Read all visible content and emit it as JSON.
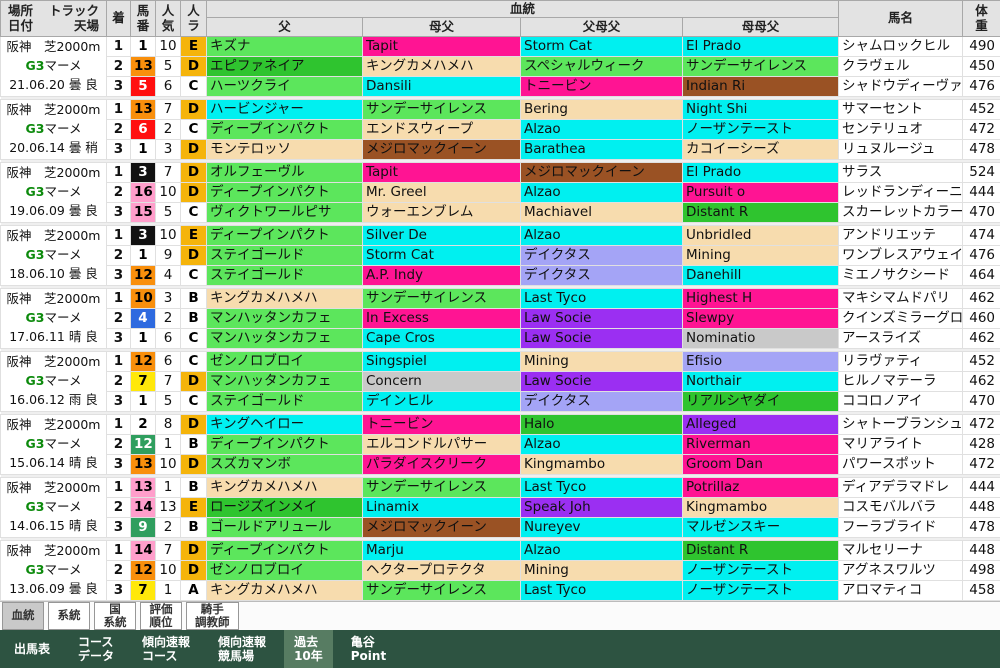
{
  "header": {
    "place_l1a": "場所",
    "place_l1b": "トラック",
    "place_l2a": "日付",
    "place_l2b": "天場",
    "fin": "着",
    "num": "馬番",
    "pop": "人気",
    "rank": "人ラ",
    "pedigree": "血統",
    "sire": "父",
    "damsire": "母父",
    "sire_dam_sire": "父母父",
    "dam_dam_sire": "母母父",
    "name": "馬名",
    "weight": "体重"
  },
  "colors": {
    "nav_bg": "#2d5341",
    "nav_active": "#577c62",
    "tab_active_bg": "#c9c9c9",
    "grade_green": "#0c8a0c",
    "header_bg": "#e3e3e3"
  },
  "palette": {
    "green": "#5ce65c",
    "dgreen": "#2fc42f",
    "magenta": "#ff1493",
    "cyan": "#00f0f0",
    "wheat": "#f7dcae",
    "brown": "#9a5224",
    "purple": "#9b2ff2",
    "periwinkle": "#a4a4f6",
    "silver": "#c9c9c9",
    "white": "#ffffff"
  },
  "num_colors": {
    "white": {
      "bg": "#ffffff",
      "fg": "#000000"
    },
    "black": {
      "bg": "#111111",
      "fg": "#ffffff"
    },
    "red": {
      "bg": "#ff0f0f",
      "fg": "#ffffff"
    },
    "blue": {
      "bg": "#2e6adf",
      "fg": "#ffffff"
    },
    "yellow": {
      "bg": "#ffe80a",
      "fg": "#000000"
    },
    "green": {
      "bg": "#2f9e5e",
      "fg": "#ffffff"
    },
    "orange": {
      "bg": "#f98f0c",
      "fg": "#000000"
    },
    "pink": {
      "bg": "#ff9ecb",
      "fg": "#000000"
    }
  },
  "rank_colors": {
    "gold": {
      "bg": "#f5b40b",
      "fg": "#000000"
    },
    "plain": {
      "bg": "#ffffff",
      "fg": "#000000"
    }
  },
  "races": [
    {
      "place": "阪神　芝2000m",
      "grade": "G3",
      "race_name": "マーメ",
      "date_line": "21.06.20 曇 良",
      "rows": [
        {
          "fin": "1",
          "num": "1",
          "num_c": "white",
          "pop": "10",
          "rank": "E",
          "rank_c": "gold",
          "sire": {
            "t": "キズナ",
            "c": "green"
          },
          "damsire": {
            "t": "Tapit",
            "c": "magenta"
          },
          "ss": {
            "t": "Storm Cat",
            "c": "cyan"
          },
          "ds": {
            "t": "El Prado",
            "c": "cyan"
          },
          "name": "シャムロックヒル",
          "weight": "490"
        },
        {
          "fin": "2",
          "num": "13",
          "num_c": "orange",
          "pop": "5",
          "rank": "D",
          "rank_c": "gold",
          "sire": {
            "t": "エピファネイア",
            "c": "dgreen"
          },
          "damsire": {
            "t": "キングカメハメハ",
            "c": "wheat"
          },
          "ss": {
            "t": "スペシャルウィーク",
            "c": "green"
          },
          "ds": {
            "t": "サンデーサイレンス",
            "c": "green"
          },
          "name": "クラヴェル",
          "weight": "450"
        },
        {
          "fin": "3",
          "num": "5",
          "num_c": "red",
          "pop": "6",
          "rank": "C",
          "rank_c": "plain",
          "sire": {
            "t": "ハーツクライ",
            "c": "green"
          },
          "damsire": {
            "t": "Dansili",
            "c": "cyan"
          },
          "ss": {
            "t": "トニービン",
            "c": "magenta"
          },
          "ds": {
            "t": "Indian Ri",
            "c": "brown"
          },
          "name": "シャドウディーヴァ",
          "weight": "476"
        }
      ]
    },
    {
      "place": "阪神　芝2000m",
      "grade": "G3",
      "race_name": "マーメ",
      "date_line": "20.06.14 曇 稍",
      "rows": [
        {
          "fin": "1",
          "num": "13",
          "num_c": "orange",
          "pop": "7",
          "rank": "D",
          "rank_c": "gold",
          "sire": {
            "t": "ハービンジャー",
            "c": "cyan"
          },
          "damsire": {
            "t": "サンデーサイレンス",
            "c": "green"
          },
          "ss": {
            "t": "Bering",
            "c": "wheat"
          },
          "ds": {
            "t": "Night Shi",
            "c": "cyan"
          },
          "name": "サマーセント",
          "weight": "452"
        },
        {
          "fin": "2",
          "num": "6",
          "num_c": "red",
          "pop": "2",
          "rank": "C",
          "rank_c": "plain",
          "sire": {
            "t": "ディープインパクト",
            "c": "green"
          },
          "damsire": {
            "t": "エンドスウィープ",
            "c": "wheat"
          },
          "ss": {
            "t": "Alzao",
            "c": "cyan"
          },
          "ds": {
            "t": "ノーザンテースト",
            "c": "cyan"
          },
          "name": "センテリュオ",
          "weight": "472"
        },
        {
          "fin": "3",
          "num": "1",
          "num_c": "white",
          "pop": "3",
          "rank": "D",
          "rank_c": "gold",
          "sire": {
            "t": "モンテロッソ",
            "c": "wheat"
          },
          "damsire": {
            "t": "メジロマックイーン",
            "c": "brown"
          },
          "ss": {
            "t": "Barathea",
            "c": "cyan"
          },
          "ds": {
            "t": "カコイーシーズ",
            "c": "wheat"
          },
          "name": "リュヌルージュ",
          "weight": "478"
        }
      ]
    },
    {
      "place": "阪神　芝2000m",
      "grade": "G3",
      "race_name": "マーメ",
      "date_line": "19.06.09 曇 良",
      "rows": [
        {
          "fin": "1",
          "num": "3",
          "num_c": "black",
          "pop": "7",
          "rank": "D",
          "rank_c": "gold",
          "sire": {
            "t": "オルフェーヴル",
            "c": "green"
          },
          "damsire": {
            "t": "Tapit",
            "c": "magenta"
          },
          "ss": {
            "t": "メジロマックイーン",
            "c": "brown"
          },
          "ds": {
            "t": "El Prado",
            "c": "cyan"
          },
          "name": "サラス",
          "weight": "524"
        },
        {
          "fin": "2",
          "num": "16",
          "num_c": "pink",
          "pop": "10",
          "rank": "D",
          "rank_c": "gold",
          "sire": {
            "t": "ディープインパクト",
            "c": "green"
          },
          "damsire": {
            "t": "Mr. Greel",
            "c": "wheat"
          },
          "ss": {
            "t": "Alzao",
            "c": "cyan"
          },
          "ds": {
            "t": "Pursuit o",
            "c": "magenta"
          },
          "name": "レッドランディーニ",
          "weight": "444"
        },
        {
          "fin": "3",
          "num": "15",
          "num_c": "pink",
          "pop": "5",
          "rank": "C",
          "rank_c": "plain",
          "sire": {
            "t": "ヴィクトワールピサ",
            "c": "green"
          },
          "damsire": {
            "t": "ウォーエンブレム",
            "c": "wheat"
          },
          "ss": {
            "t": "Machiavel",
            "c": "wheat"
          },
          "ds": {
            "t": "Distant R",
            "c": "dgreen"
          },
          "name": "スカーレットカラー",
          "weight": "470"
        }
      ]
    },
    {
      "place": "阪神　芝2000m",
      "grade": "G3",
      "race_name": "マーメ",
      "date_line": "18.06.10 曇 良",
      "rows": [
        {
          "fin": "1",
          "num": "3",
          "num_c": "black",
          "pop": "10",
          "rank": "E",
          "rank_c": "gold",
          "sire": {
            "t": "ディープインパクト",
            "c": "green"
          },
          "damsire": {
            "t": "Silver De",
            "c": "cyan"
          },
          "ss": {
            "t": "Alzao",
            "c": "cyan"
          },
          "ds": {
            "t": "Unbridled",
            "c": "wheat"
          },
          "name": "アンドリエッテ",
          "weight": "474"
        },
        {
          "fin": "2",
          "num": "1",
          "num_c": "white",
          "pop": "9",
          "rank": "D",
          "rank_c": "gold",
          "sire": {
            "t": "ステイゴールド",
            "c": "green"
          },
          "damsire": {
            "t": "Storm Cat",
            "c": "cyan"
          },
          "ss": {
            "t": "デイクタス",
            "c": "periwinkle"
          },
          "ds": {
            "t": "Mining",
            "c": "wheat"
          },
          "name": "ワンブレスアウェイ",
          "weight": "476"
        },
        {
          "fin": "3",
          "num": "12",
          "num_c": "orange",
          "pop": "4",
          "rank": "C",
          "rank_c": "plain",
          "sire": {
            "t": "ステイゴールド",
            "c": "green"
          },
          "damsire": {
            "t": "A.P. Indy",
            "c": "magenta"
          },
          "ss": {
            "t": "デイクタス",
            "c": "periwinkle"
          },
          "ds": {
            "t": "Danehill",
            "c": "cyan"
          },
          "name": "ミエノサクシード",
          "weight": "464"
        }
      ]
    },
    {
      "place": "阪神　芝2000m",
      "grade": "G3",
      "race_name": "マーメ",
      "date_line": "17.06.11 晴 良",
      "rows": [
        {
          "fin": "1",
          "num": "10",
          "num_c": "orange",
          "pop": "3",
          "rank": "B",
          "rank_c": "plain",
          "sire": {
            "t": "キングカメハメハ",
            "c": "wheat"
          },
          "damsire": {
            "t": "サンデーサイレンス",
            "c": "green"
          },
          "ss": {
            "t": "Last Tyco",
            "c": "cyan"
          },
          "ds": {
            "t": "Highest H",
            "c": "magenta"
          },
          "name": "マキシマムドパリ",
          "weight": "462"
        },
        {
          "fin": "2",
          "num": "4",
          "num_c": "blue",
          "pop": "2",
          "rank": "B",
          "rank_c": "plain",
          "sire": {
            "t": "マンハッタンカフェ",
            "c": "green"
          },
          "damsire": {
            "t": "In Excess",
            "c": "magenta"
          },
          "ss": {
            "t": "Law Socie",
            "c": "purple"
          },
          "ds": {
            "t": "Slewpy",
            "c": "magenta"
          },
          "name": "クインズミラーグロ",
          "weight": "460"
        },
        {
          "fin": "3",
          "num": "1",
          "num_c": "white",
          "pop": "6",
          "rank": "C",
          "rank_c": "plain",
          "sire": {
            "t": "マンハッタンカフェ",
            "c": "green"
          },
          "damsire": {
            "t": "Cape Cros",
            "c": "cyan"
          },
          "ss": {
            "t": "Law Socie",
            "c": "purple"
          },
          "ds": {
            "t": "Nominatio",
            "c": "silver"
          },
          "name": "アースライズ",
          "weight": "462"
        }
      ]
    },
    {
      "place": "阪神　芝2000m",
      "grade": "G3",
      "race_name": "マーメ",
      "date_line": "16.06.12 雨 良",
      "rows": [
        {
          "fin": "1",
          "num": "12",
          "num_c": "orange",
          "pop": "6",
          "rank": "C",
          "rank_c": "plain",
          "sire": {
            "t": "ゼンノロブロイ",
            "c": "green"
          },
          "damsire": {
            "t": "Singspiel",
            "c": "cyan"
          },
          "ss": {
            "t": "Mining",
            "c": "wheat"
          },
          "ds": {
            "t": "Efisio",
            "c": "periwinkle"
          },
          "name": "リラヴァティ",
          "weight": "452"
        },
        {
          "fin": "2",
          "num": "7",
          "num_c": "yellow",
          "pop": "7",
          "rank": "D",
          "rank_c": "gold",
          "sire": {
            "t": "マンハッタンカフェ",
            "c": "green"
          },
          "damsire": {
            "t": "Concern",
            "c": "silver"
          },
          "ss": {
            "t": "Law Socie",
            "c": "purple"
          },
          "ds": {
            "t": "Northair",
            "c": "cyan"
          },
          "name": "ヒルノマテーラ",
          "weight": "462"
        },
        {
          "fin": "3",
          "num": "1",
          "num_c": "white",
          "pop": "5",
          "rank": "C",
          "rank_c": "plain",
          "sire": {
            "t": "ステイゴールド",
            "c": "green"
          },
          "damsire": {
            "t": "デインヒル",
            "c": "cyan"
          },
          "ss": {
            "t": "デイクタス",
            "c": "periwinkle"
          },
          "ds": {
            "t": "リアルシヤダイ",
            "c": "dgreen"
          },
          "name": "ココロノアイ",
          "weight": "470"
        }
      ]
    },
    {
      "place": "阪神　芝2000m",
      "grade": "G3",
      "race_name": "マーメ",
      "date_line": "15.06.14 晴 良",
      "rows": [
        {
          "fin": "1",
          "num": "2",
          "num_c": "white",
          "pop": "8",
          "rank": "D",
          "rank_c": "gold",
          "sire": {
            "t": "キングヘイロー",
            "c": "cyan"
          },
          "damsire": {
            "t": "トニービン",
            "c": "magenta"
          },
          "ss": {
            "t": "Halo",
            "c": "dgreen"
          },
          "ds": {
            "t": "Alleged",
            "c": "purple"
          },
          "name": "シャトーブランシュ",
          "weight": "472"
        },
        {
          "fin": "2",
          "num": "12",
          "num_c": "green",
          "pop": "1",
          "rank": "B",
          "rank_c": "plain",
          "sire": {
            "t": "ディープインパクト",
            "c": "green"
          },
          "damsire": {
            "t": "エルコンドルパサー",
            "c": "wheat"
          },
          "ss": {
            "t": "Alzao",
            "c": "cyan"
          },
          "ds": {
            "t": "Riverman",
            "c": "magenta"
          },
          "name": "マリアライト",
          "weight": "428"
        },
        {
          "fin": "3",
          "num": "13",
          "num_c": "orange",
          "pop": "10",
          "rank": "D",
          "rank_c": "gold",
          "sire": {
            "t": "スズカマンボ",
            "c": "green"
          },
          "damsire": {
            "t": "パラダイスクリーク",
            "c": "magenta"
          },
          "ss": {
            "t": "Kingmambo",
            "c": "wheat"
          },
          "ds": {
            "t": "Groom Dan",
            "c": "magenta"
          },
          "name": "パワースポット",
          "weight": "472"
        }
      ]
    },
    {
      "place": "阪神　芝2000m",
      "grade": "G3",
      "race_name": "マーメ",
      "date_line": "14.06.15 晴 良",
      "rows": [
        {
          "fin": "1",
          "num": "13",
          "num_c": "pink",
          "pop": "1",
          "rank": "B",
          "rank_c": "plain",
          "sire": {
            "t": "キングカメハメハ",
            "c": "wheat"
          },
          "damsire": {
            "t": "サンデーサイレンス",
            "c": "green"
          },
          "ss": {
            "t": "Last Tyco",
            "c": "cyan"
          },
          "ds": {
            "t": "Potrillaz",
            "c": "magenta"
          },
          "name": "ディアデラマドレ",
          "weight": "444"
        },
        {
          "fin": "2",
          "num": "14",
          "num_c": "pink",
          "pop": "13",
          "rank": "E",
          "rank_c": "gold",
          "sire": {
            "t": "ロージズインメイ",
            "c": "dgreen"
          },
          "damsire": {
            "t": "Linamix",
            "c": "cyan"
          },
          "ss": {
            "t": "Speak Joh",
            "c": "purple"
          },
          "ds": {
            "t": "Kingmambo",
            "c": "wheat"
          },
          "name": "コスモバルバラ",
          "weight": "448"
        },
        {
          "fin": "3",
          "num": "9",
          "num_c": "green",
          "pop": "2",
          "rank": "B",
          "rank_c": "plain",
          "sire": {
            "t": "ゴールドアリュール",
            "c": "green"
          },
          "damsire": {
            "t": "メジロマックイーン",
            "c": "brown"
          },
          "ss": {
            "t": "Nureyev",
            "c": "cyan"
          },
          "ds": {
            "t": "マルゼンスキー",
            "c": "cyan"
          },
          "name": "フーラブライド",
          "weight": "478"
        }
      ]
    },
    {
      "place": "阪神　芝2000m",
      "grade": "G3",
      "race_name": "マーメ",
      "date_line": "13.06.09 曇 良",
      "rows": [
        {
          "fin": "1",
          "num": "14",
          "num_c": "pink",
          "pop": "7",
          "rank": "D",
          "rank_c": "gold",
          "sire": {
            "t": "ディープインパクト",
            "c": "green"
          },
          "damsire": {
            "t": "Marju",
            "c": "cyan"
          },
          "ss": {
            "t": "Alzao",
            "c": "cyan"
          },
          "ds": {
            "t": "Distant R",
            "c": "dgreen"
          },
          "name": "マルセリーナ",
          "weight": "448"
        },
        {
          "fin": "2",
          "num": "12",
          "num_c": "orange",
          "pop": "10",
          "rank": "D",
          "rank_c": "gold",
          "sire": {
            "t": "ゼンノロブロイ",
            "c": "green"
          },
          "damsire": {
            "t": "ヘクタープロテクタ",
            "c": "wheat"
          },
          "ss": {
            "t": "Mining",
            "c": "wheat"
          },
          "ds": {
            "t": "ノーザンテースト",
            "c": "cyan"
          },
          "name": "アグネスワルツ",
          "weight": "498"
        },
        {
          "fin": "3",
          "num": "7",
          "num_c": "yellow",
          "pop": "1",
          "rank": "A",
          "rank_c": "plain",
          "sire": {
            "t": "キングカメハメハ",
            "c": "wheat"
          },
          "damsire": {
            "t": "サンデーサイレンス",
            "c": "green"
          },
          "ss": {
            "t": "Last Tyco",
            "c": "cyan"
          },
          "ds": {
            "t": "ノーザンテースト",
            "c": "cyan"
          },
          "name": "アロマティコ",
          "weight": "458"
        }
      ]
    }
  ],
  "tabs": [
    {
      "line1": "血統",
      "line2": ""
    },
    {
      "line1": "系統",
      "line2": ""
    },
    {
      "line1": "国",
      "line2": "系統"
    },
    {
      "line1": "評価",
      "line2": "順位"
    },
    {
      "line1": "騎手",
      "line2": "調教師"
    }
  ],
  "nav": [
    {
      "line1": "出馬表",
      "line2": ""
    },
    {
      "line1": "コース",
      "line2": "データ"
    },
    {
      "line1": "傾向速報",
      "line2": "コース"
    },
    {
      "line1": "傾向速報",
      "line2": "競馬場"
    },
    {
      "line1": "過去",
      "line2": "10年"
    },
    {
      "line1": "亀谷",
      "line2": "Point"
    }
  ]
}
